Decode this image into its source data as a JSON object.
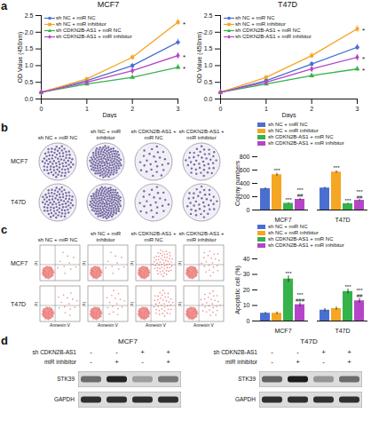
{
  "chart_data": [
    {
      "panel": "a",
      "type": "line",
      "title": "MCF7",
      "x_label": "Days",
      "y_label": "OD Value (450nm)",
      "x": [
        0,
        1,
        2,
        3
      ],
      "xlim": [
        0,
        3
      ],
      "xticks": [
        0,
        1,
        2,
        3
      ],
      "ylim": [
        0,
        2.5
      ],
      "yticks": [
        {
          "value": 0,
          "label": "0.0"
        },
        0.5,
        {
          "value": 1,
          "label": "1.0"
        },
        1.5,
        {
          "value": 2,
          "label": "2.0"
        },
        2.5
      ],
      "legend": "top-left",
      "series": [
        {
          "name": "sh NC + miR NC",
          "color": "#4a6fd0",
          "marker": "circle",
          "values": [
            0.2,
            0.55,
            1.0,
            1.7
          ],
          "errors": [
            0.03,
            0.05,
            0.07,
            0.09
          ]
        },
        {
          "name": "sh NC + miR inhibitor",
          "color": "#f5a623",
          "marker": "square",
          "values": [
            0.2,
            0.6,
            1.25,
            2.3
          ],
          "errors": [
            0.03,
            0.05,
            0.08,
            0.1
          ],
          "annotation": "*"
        },
        {
          "name": "sh CDKN2B-AS1 + miR NC",
          "color": "#35b24a",
          "marker": "triangle",
          "values": [
            0.2,
            0.45,
            0.65,
            0.95
          ],
          "errors": [
            0.03,
            0.04,
            0.05,
            0.07
          ],
          "annotation": "*"
        },
        {
          "name": "sh CDKN2B-AS1 + miR inhibitor",
          "color": "#b445c8",
          "marker": "diamond",
          "values": [
            0.2,
            0.5,
            0.85,
            1.3
          ],
          "errors": [
            0.03,
            0.04,
            0.06,
            0.08
          ],
          "annotation": "*"
        }
      ]
    },
    {
      "panel": "a",
      "type": "line",
      "title": "T47D",
      "x_label": "Days",
      "y_label": "OD Value (450nm)",
      "x": [
        0,
        1,
        2,
        3
      ],
      "xlim": [
        0,
        3
      ],
      "xticks": [
        0,
        1,
        2,
        3
      ],
      "ylim": [
        0,
        2.5
      ],
      "yticks": [
        {
          "value": 0,
          "label": "0.0"
        },
        0.5,
        {
          "value": 1,
          "label": "1.0"
        },
        1.5,
        {
          "value": 2,
          "label": "2.0"
        },
        2.5
      ],
      "legend": "top-left",
      "series": [
        {
          "name": "sh NC + miR NC",
          "color": "#4a6fd0",
          "marker": "circle",
          "values": [
            0.2,
            0.55,
            1.05,
            1.55
          ],
          "errors": [
            0.03,
            0.05,
            0.07,
            0.09
          ]
        },
        {
          "name": "sh NC + miR inhibitor",
          "color": "#f5a623",
          "marker": "square",
          "values": [
            0.2,
            0.65,
            1.3,
            2.1
          ],
          "errors": [
            0.03,
            0.05,
            0.08,
            0.1
          ],
          "annotation": "*"
        },
        {
          "name": "sh CDKN2B-AS1 + miR NC",
          "color": "#35b24a",
          "marker": "triangle",
          "values": [
            0.2,
            0.45,
            0.7,
            0.9
          ],
          "errors": [
            0.03,
            0.04,
            0.05,
            0.07
          ],
          "annotation": "*"
        },
        {
          "name": "sh CDKN2B-AS1 + miR inhibitor",
          "color": "#b445c8",
          "marker": "diamond",
          "values": [
            0.2,
            0.5,
            0.9,
            1.25
          ],
          "errors": [
            0.03,
            0.04,
            0.06,
            0.08
          ],
          "annotation": "*"
        }
      ]
    },
    {
      "panel": "b",
      "type": "bar",
      "y_label": "Colony numbers",
      "categories": [
        "MCF7",
        "T47D"
      ],
      "ylim": [
        0,
        800
      ],
      "yticks": [
        0,
        200,
        400,
        600,
        800
      ],
      "legend": "top-left",
      "series": [
        {
          "name": "sh NC + miR NC",
          "color": "#4a6fd0",
          "values": [
            320,
            330
          ],
          "errors": [
            15,
            12
          ]
        },
        {
          "name": "sh NC + miR inhibitor",
          "color": "#f5a623",
          "values": [
            530,
            570
          ],
          "errors": [
            20,
            18
          ],
          "annotations": [
            [
              "***"
            ],
            [
              "***"
            ]
          ]
        },
        {
          "name": "sh CDKN2B-AS1 + miR NC",
          "color": "#35b24a",
          "values": [
            100,
            95
          ],
          "errors": [
            10,
            8
          ],
          "annotations": [
            [
              "***"
            ],
            [
              "***"
            ]
          ]
        },
        {
          "name": "sh CDKN2B-AS1 + miR inhibitor",
          "color": "#b445c8",
          "values": [
            160,
            145
          ],
          "errors": [
            15,
            12
          ],
          "annotations": [
            [
              "***",
              "##"
            ],
            [
              "***",
              "##"
            ]
          ]
        }
      ]
    },
    {
      "panel": "c",
      "type": "bar",
      "y_label": "Apoptotic cell (%)",
      "categories": [
        "MCF7",
        "T47D"
      ],
      "ylim": [
        0,
        40
      ],
      "yticks": [
        0,
        10,
        20,
        30,
        40
      ],
      "legend": "top-left",
      "series": [
        {
          "name": "sh NC + miR NC",
          "color": "#4a6fd0",
          "values": [
            5,
            7
          ],
          "errors": [
            0.6,
            1
          ]
        },
        {
          "name": "sh NC + miR inhibitor",
          "color": "#f5a623",
          "values": [
            5,
            8
          ],
          "errors": [
            0.8,
            1
          ]
        },
        {
          "name": "sh CDKN2B-AS1 + miR NC",
          "color": "#35b24a",
          "values": [
            27,
            19
          ],
          "errors": [
            2,
            1.5
          ],
          "annotations": [
            [
              "***"
            ],
            [
              "***"
            ]
          ]
        },
        {
          "name": "sh CDKN2B-AS1 + miR inhibitor",
          "color": "#b445c8",
          "values": [
            10.5,
            13
          ],
          "errors": [
            1.2,
            1.5
          ],
          "annotations": [
            [
              "***",
              "###"
            ],
            [
              "***",
              "##"
            ]
          ]
        }
      ]
    }
  ],
  "colony_images": {
    "panel": "b",
    "columns": [
      "sh NC + miR NC",
      "sh NC + miR inhibitor",
      "sh CDKN2B-AS1 + miR NC",
      "sh CDKN2B-AS1 + miR inhibitor"
    ],
    "rows": [
      "MCF7",
      "T47D"
    ]
  },
  "flow_images": {
    "panel": "c",
    "columns": [
      "sh NC + miR NC",
      "sh NC + miR inhibitor",
      "sh CDKN2B-AS1 + miR NC",
      "sh CDKN2B-AS1 + miR inhibitor"
    ],
    "rows": [
      "MCF7",
      "T47D"
    ],
    "x_label": "Annexin V",
    "y_label": "PI"
  },
  "western_blot": {
    "panel": "d",
    "blots": [
      {
        "title": "MCF7",
        "conditions": [
          {
            "label": "sh CDKN2B-AS1",
            "signs": [
              "-",
              "-",
              "+",
              "+"
            ]
          },
          {
            "label": "miR inhibitor",
            "signs": [
              "-",
              "+",
              "-",
              "+"
            ]
          }
        ],
        "bands": [
          {
            "label": "STK39",
            "intensity": [
              0.55,
              0.9,
              0.3,
              0.5
            ]
          },
          {
            "label": "GAPDH",
            "intensity": [
              0.85,
              0.85,
              0.85,
              0.85
            ]
          }
        ]
      },
      {
        "title": "T47D",
        "conditions": [
          {
            "label": "sh CDKN2B-AS1",
            "signs": [
              "-",
              "-",
              "+",
              "+"
            ]
          },
          {
            "label": "miR inhibitor",
            "signs": [
              "-",
              "+",
              "-",
              "+"
            ]
          }
        ],
        "bands": [
          {
            "label": "STK39",
            "intensity": [
              0.6,
              0.95,
              0.35,
              0.55
            ]
          },
          {
            "label": "GAPDH",
            "intensity": [
              0.85,
              0.85,
              0.85,
              0.85
            ]
          }
        ]
      }
    ]
  }
}
